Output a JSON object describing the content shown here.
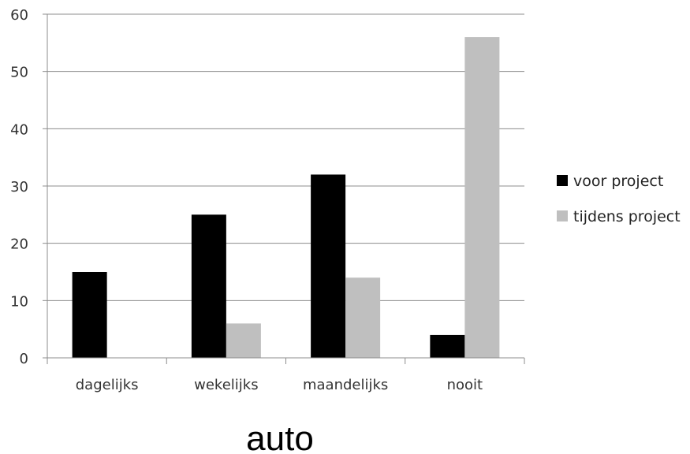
{
  "chart_data": {
    "type": "bar",
    "categories": [
      "dagelijks",
      "wekelijks",
      "maandelijks",
      "nooit"
    ],
    "series": [
      {
        "name": "voor project",
        "values": [
          15,
          25,
          32,
          4
        ],
        "color": "#000000"
      },
      {
        "name": "tijdens project",
        "values": [
          0,
          6,
          14,
          56
        ],
        "color": "#bfbfbf"
      }
    ],
    "ylim": [
      0,
      60
    ],
    "yticks": [
      0,
      10,
      20,
      30,
      40,
      50,
      60
    ],
    "grid": true,
    "legend_position": "right",
    "caption": "auto"
  }
}
